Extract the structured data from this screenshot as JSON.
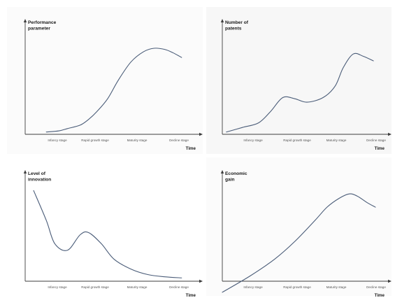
{
  "colors": {
    "axis": "#3d3d3d",
    "curve": "#4a5c78",
    "text": "#1a1a1a"
  },
  "chart_data": [
    {
      "type": "line",
      "ylabel_lines": [
        "Performance",
        "parameter"
      ],
      "xlabel": "Time",
      "categories": [
        "Infancy stage",
        "Rapid growth stage",
        "Maturity stage",
        "Decline stage"
      ],
      "x": [
        0.0,
        0.3,
        0.5,
        0.8,
        1.0,
        1.2,
        1.45,
        1.7,
        2.0,
        2.3,
        2.55,
        2.8,
        3.0,
        3.2
      ],
      "values": [
        2,
        3,
        5,
        8,
        13,
        20,
        31,
        47,
        63,
        72,
        75,
        74,
        71,
        67
      ],
      "xlim": [
        -0.5,
        3.7
      ],
      "ylim": [
        0,
        100
      ],
      "grid": false
    },
    {
      "type": "line",
      "ylabel_lines": [
        "Number of",
        "patents"
      ],
      "xlabel": "Time",
      "categories": [
        "Infancy stage",
        "Rapid growth stage",
        "Maturity stage",
        "Decline stage"
      ],
      "x": [
        -0.4,
        0.0,
        0.4,
        0.7,
        1.0,
        1.3,
        1.6,
        2.0,
        2.3,
        2.5,
        2.75,
        3.0,
        3.25
      ],
      "values": [
        2,
        6,
        10,
        20,
        32,
        31,
        28,
        32,
        42,
        58,
        70,
        68,
        64
      ],
      "xlim": [
        -0.5,
        3.7
      ],
      "ylim": [
        0,
        100
      ],
      "grid": false
    },
    {
      "type": "line",
      "ylabel_lines": [
        "Level of",
        "innovation"
      ],
      "xlabel": "Time",
      "categories": [
        "Infancy stage",
        "Rapid growth stage",
        "Maturity stage",
        "Decline stage"
      ],
      "x": [
        -0.3,
        0.0,
        0.2,
        0.5,
        0.8,
        1.0,
        1.3,
        1.6,
        2.0,
        2.4,
        2.8,
        3.2
      ],
      "values": [
        82,
        55,
        34,
        28,
        42,
        44,
        34,
        20,
        11,
        6,
        4,
        3
      ],
      "xlim": [
        -0.5,
        3.7
      ],
      "ylim": [
        0,
        100
      ],
      "grid": false
    },
    {
      "type": "line",
      "ylabel_lines": [
        "Economic",
        "gain"
      ],
      "xlabel": "Time",
      "categories": [
        "Infancy stage",
        "Rapid growth stage",
        "Maturity stage",
        "Decline stage"
      ],
      "x": [
        -0.5,
        0.2,
        0.8,
        1.3,
        1.8,
        2.1,
        2.4,
        2.65,
        2.85,
        3.1,
        3.3
      ],
      "values": [
        -10,
        5,
        20,
        36,
        55,
        67,
        75,
        79,
        77,
        71,
        67
      ],
      "xlim": [
        -0.5,
        3.7
      ],
      "ylim": [
        0,
        100
      ],
      "grid": false
    }
  ]
}
